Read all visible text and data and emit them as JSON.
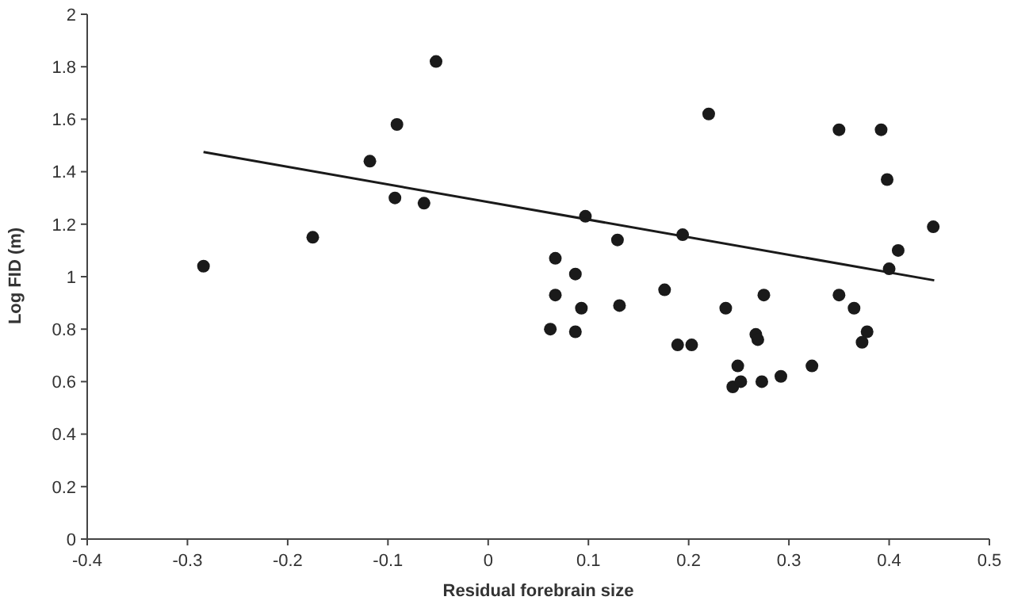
{
  "chart_data": {
    "type": "scatter",
    "xlabel": "Residual forebrain size",
    "ylabel": "Log FID (m)",
    "xlim": [
      -0.4,
      0.5
    ],
    "ylim": [
      0,
      2
    ],
    "xticks": [
      -0.4,
      -0.3,
      -0.2,
      -0.1,
      0,
      0.1,
      0.2,
      0.3,
      0.4,
      0.5
    ],
    "yticks": [
      0,
      0.2,
      0.4,
      0.6,
      0.8,
      1,
      1.2,
      1.4,
      1.6,
      1.8,
      2
    ],
    "grid": false,
    "series": [
      {
        "color": "#1a1a1a",
        "marker": "circle",
        "x": [
          -0.284,
          -0.175,
          -0.118,
          -0.091,
          -0.093,
          -0.064,
          -0.052,
          0.22,
          0.35,
          0.392,
          0.398,
          0.444,
          0.409,
          0.4,
          0.097,
          0.194,
          0.129,
          0.067,
          0.087,
          0.067,
          0.093,
          0.062,
          0.087,
          0.131,
          0.176,
          0.189,
          0.203,
          0.237,
          0.275,
          0.267,
          0.269,
          0.249,
          0.244,
          0.252,
          0.273,
          0.292,
          0.323,
          0.35,
          0.365,
          0.378,
          0.373
        ],
        "values": [
          1.04,
          1.15,
          1.44,
          1.58,
          1.3,
          1.28,
          1.82,
          1.62,
          1.56,
          1.56,
          1.37,
          1.19,
          1.1,
          1.03,
          1.23,
          1.16,
          1.14,
          1.07,
          1.01,
          0.93,
          0.88,
          0.8,
          0.79,
          0.89,
          0.95,
          0.74,
          0.74,
          0.88,
          0.93,
          0.78,
          0.76,
          0.66,
          0.58,
          0.6,
          0.6,
          0.62,
          0.66,
          0.93,
          0.88,
          0.79,
          0.75
        ]
      },
      {
        "type": "line",
        "color": "#1a1a1a",
        "marker": "none",
        "line_style": "solid",
        "x": [
          -0.284,
          0.445
        ],
        "values": [
          1.475,
          0.986
        ]
      }
    ]
  }
}
